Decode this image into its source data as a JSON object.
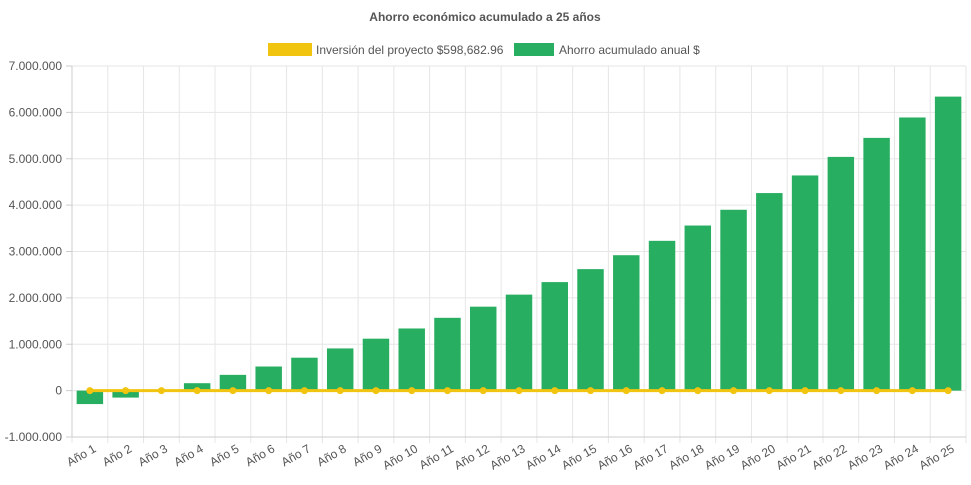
{
  "chart_data": {
    "type": "bar",
    "title": "Ahorro económico acumulado a 25 años",
    "categories": [
      "Año 1",
      "Año 2",
      "Año 3",
      "Año 4",
      "Año 5",
      "Año 6",
      "Año 7",
      "Año 8",
      "Año 9",
      "Año 10",
      "Año 11",
      "Año 12",
      "Año 13",
      "Año 14",
      "Año 15",
      "Año 16",
      "Año 17",
      "Año 18",
      "Año 19",
      "Año 20",
      "Año 21",
      "Año 22",
      "Año 23",
      "Año 24",
      "Año 25"
    ],
    "series": [
      {
        "name": "Inversión del proyecto $598,682.96",
        "kind": "line",
        "color": "#f1c40f",
        "values": [
          0,
          0,
          0,
          0,
          0,
          0,
          0,
          0,
          0,
          0,
          0,
          0,
          0,
          0,
          0,
          0,
          0,
          0,
          0,
          0,
          0,
          0,
          0,
          0,
          0
        ]
      },
      {
        "name": "Ahorro acumulado anual $",
        "kind": "bar",
        "color": "#27ae60",
        "values": [
          -290000,
          -150000,
          0,
          160000,
          340000,
          520000,
          710000,
          910000,
          1120000,
          1340000,
          1570000,
          1810000,
          2070000,
          2340000,
          2620000,
          2920000,
          3230000,
          3560000,
          3900000,
          4260000,
          4640000,
          5040000,
          5450000,
          5890000,
          6340000
        ]
      }
    ],
    "y_ticks": [
      "7.000.000",
      "6.000.000",
      "5.000.000",
      "4.000.000",
      "3.000.000",
      "2.000.000",
      "1.000.000",
      "0",
      "-1.000.000"
    ],
    "ylim": [
      -1000000,
      7000000
    ],
    "grid": true,
    "legend_position": "top"
  }
}
